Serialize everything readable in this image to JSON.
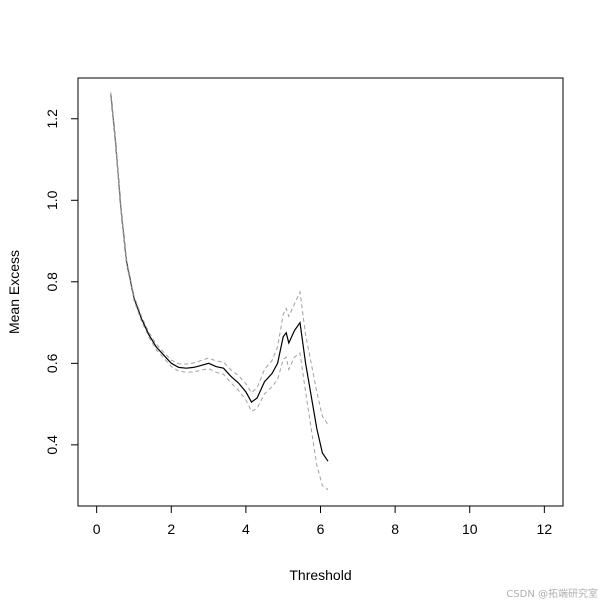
{
  "chart_data": {
    "type": "line",
    "title": "",
    "xlabel": "Threshold",
    "ylabel": "Mean Excess",
    "xlim": [
      -0.5,
      12.5
    ],
    "ylim": [
      0.25,
      1.3
    ],
    "x_ticks": [
      0,
      2,
      4,
      6,
      8,
      10,
      12
    ],
    "y_ticks": [
      0.4,
      0.6,
      0.8,
      1.0,
      1.2
    ],
    "x_tick_labels": [
      "0",
      "2",
      "4",
      "6",
      "8",
      "10",
      "12"
    ],
    "y_tick_labels": [
      "0.4",
      "0.6",
      "0.8",
      "1.0",
      "1.2"
    ],
    "grid": false,
    "series": [
      {
        "role": "estimate",
        "style": "solid",
        "color": "#000000",
        "x": [
          0.38,
          0.5,
          0.65,
          0.8,
          1.0,
          1.2,
          1.4,
          1.6,
          1.8,
          2.0,
          2.2,
          2.4,
          2.6,
          2.8,
          3.0,
          3.2,
          3.4,
          3.6,
          3.8,
          4.0,
          4.15,
          4.3,
          4.5,
          4.7,
          4.85,
          5.0,
          5.08,
          5.15,
          5.3,
          5.45,
          5.6,
          5.75,
          5.9,
          6.05,
          6.2
        ],
        "y": [
          1.26,
          1.15,
          0.98,
          0.85,
          0.76,
          0.71,
          0.67,
          0.64,
          0.62,
          0.6,
          0.59,
          0.588,
          0.59,
          0.595,
          0.6,
          0.592,
          0.588,
          0.568,
          0.552,
          0.53,
          0.505,
          0.515,
          0.555,
          0.575,
          0.6,
          0.665,
          0.675,
          0.65,
          0.68,
          0.7,
          0.6,
          0.52,
          0.44,
          0.38,
          0.36
        ]
      },
      {
        "role": "upper-bound",
        "style": "dashed",
        "color": "#a0a0a0",
        "x": [
          0.38,
          0.5,
          0.65,
          0.8,
          1.0,
          1.2,
          1.4,
          1.6,
          1.8,
          2.0,
          2.2,
          2.4,
          2.6,
          2.8,
          3.0,
          3.2,
          3.4,
          3.6,
          3.8,
          4.0,
          4.15,
          4.3,
          4.5,
          4.7,
          4.85,
          5.0,
          5.08,
          5.15,
          5.3,
          5.45,
          5.6,
          5.75,
          5.9,
          6.05,
          6.2
        ],
        "y": [
          1.265,
          1.155,
          0.985,
          0.855,
          0.765,
          0.716,
          0.676,
          0.647,
          0.627,
          0.608,
          0.599,
          0.598,
          0.601,
          0.607,
          0.613,
          0.606,
          0.603,
          0.584,
          0.57,
          0.55,
          0.528,
          0.54,
          0.585,
          0.607,
          0.64,
          0.72,
          0.735,
          0.715,
          0.745,
          0.775,
          0.67,
          0.6,
          0.53,
          0.47,
          0.45
        ]
      },
      {
        "role": "lower-bound",
        "style": "dashed",
        "color": "#a0a0a0",
        "x": [
          0.38,
          0.5,
          0.65,
          0.8,
          1.0,
          1.2,
          1.4,
          1.6,
          1.8,
          2.0,
          2.2,
          2.4,
          2.6,
          2.8,
          3.0,
          3.2,
          3.4,
          3.6,
          3.8,
          4.0,
          4.15,
          4.3,
          4.5,
          4.7,
          4.85,
          5.0,
          5.08,
          5.15,
          5.3,
          5.45,
          5.6,
          5.75,
          5.9,
          6.05,
          6.2
        ],
        "y": [
          1.255,
          1.145,
          0.975,
          0.845,
          0.755,
          0.704,
          0.664,
          0.633,
          0.613,
          0.592,
          0.581,
          0.578,
          0.579,
          0.583,
          0.587,
          0.578,
          0.573,
          0.552,
          0.534,
          0.51,
          0.482,
          0.49,
          0.525,
          0.543,
          0.56,
          0.61,
          0.615,
          0.585,
          0.615,
          0.625,
          0.53,
          0.44,
          0.35,
          0.3,
          0.29
        ]
      }
    ]
  },
  "watermark": "CSDN @拓端研究室"
}
